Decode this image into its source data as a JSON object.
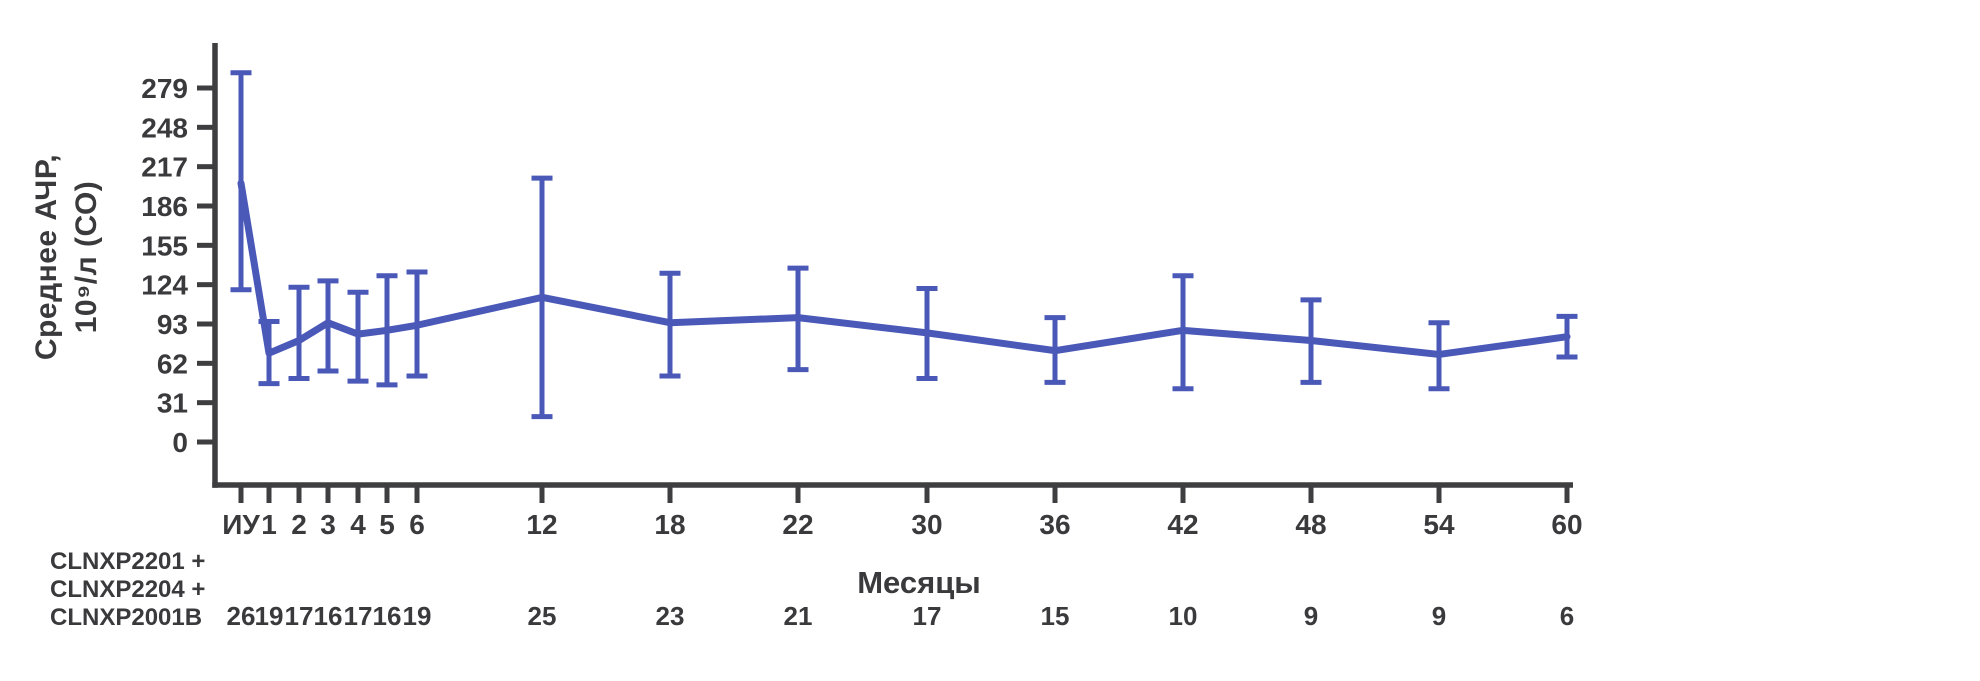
{
  "chart_data": {
    "type": "line",
    "title": "",
    "ylabel_line1": "Среднее АЧР,",
    "ylabel_line2": "10⁹/л (СО)",
    "xlabel": "Месяцы",
    "categories": [
      "ИУ",
      "1",
      "2",
      "3",
      "4",
      "5",
      "6",
      "12",
      "18",
      "22",
      "30",
      "36",
      "42",
      "48",
      "54",
      "60"
    ],
    "y_ticks": [
      0,
      31,
      62,
      93,
      124,
      155,
      186,
      217,
      248,
      279
    ],
    "ylim": [
      0,
      300
    ],
    "grid": false,
    "legend_position": "none",
    "series": [
      {
        "name": "CLNXP2201 + CLNXP2204 + CLNXP2001B",
        "means": [
          204,
          70,
          80,
          94,
          85,
          88,
          92,
          114,
          94,
          98,
          86,
          72,
          88,
          80,
          69,
          83
        ],
        "err_low": [
          120,
          46,
          50,
          56,
          48,
          45,
          52,
          20,
          52,
          57,
          50,
          47,
          42,
          47,
          42,
          67
        ],
        "err_high": [
          291,
          95,
          122,
          127,
          118,
          131,
          134,
          208,
          133,
          137,
          121,
          98,
          131,
          112,
          94,
          99
        ]
      }
    ],
    "n_label_lines": [
      "CLNXP2201 +",
      "CLNXP2204 +",
      "CLNXP2001B"
    ],
    "n_values": [
      26,
      19,
      17,
      16,
      17,
      16,
      19,
      25,
      23,
      21,
      17,
      15,
      10,
      9,
      9,
      6
    ],
    "colors": {
      "line": "#4A58B8",
      "axis": "#3E3E40",
      "text": "#3A3A3C"
    }
  }
}
